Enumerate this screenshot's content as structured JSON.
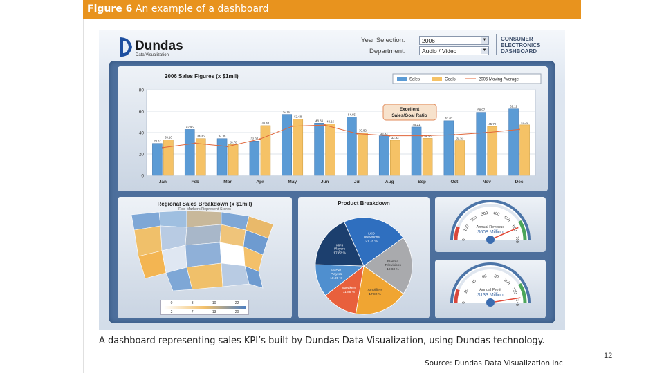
{
  "figure": {
    "label": "Figure 6",
    "title": "An example of a dashboard"
  },
  "dashboard": {
    "brand": {
      "name": "Dundas",
      "sub": "Data Visualization"
    },
    "year_selection": {
      "label": "Year Selection:",
      "value": "2006"
    },
    "department": {
      "label": "Department:",
      "value": "Audio / Video"
    },
    "dash_title": [
      "CONSUMER",
      "ELECTRONICS",
      "DASHBOARD"
    ],
    "sales": {
      "title": "2006 Sales Figures (x $1mil)"
    },
    "region": {
      "title": "Regional Sales Breakdown (x $1mil)",
      "subtitle": "Red Markers Represent Stores",
      "legend_top": [
        "0",
        "3",
        "10",
        "22"
      ],
      "legend_bottom": [
        "2",
        "7",
        "13",
        "20"
      ]
    },
    "product": {
      "title": "Product Breakdown"
    },
    "gauges": [
      {
        "label": "Annual Revenue",
        "value_text": "$608 Million",
        "ticks": [
          "0",
          "100",
          "200",
          "300",
          "400",
          "500",
          "600",
          "700"
        ],
        "value": 608,
        "max": 700
      },
      {
        "label": "Annual Profit",
        "value_text": "$133 Million",
        "ticks": [
          "0",
          "20",
          "40",
          "60",
          "80",
          "100",
          "120",
          "140"
        ],
        "value": 133,
        "max": 140
      }
    ]
  },
  "chart_data": [
    {
      "type": "bar",
      "title": "2006 Sales Figures (x $1mil)",
      "categories": [
        "Jan",
        "Feb",
        "Mar",
        "Apr",
        "May",
        "Jun",
        "Jul",
        "Aug",
        "Sep",
        "Oct",
        "Nov",
        "Dec"
      ],
      "series": [
        {
          "name": "Sales",
          "values": [
            29.87,
            42.95,
            34.35,
            32.07,
            57.02,
            48.83,
            54.65,
            36.92,
            45.21,
            51.07,
            58.97,
            62.12
          ],
          "color": "#5b9bd5"
        },
        {
          "name": "Goals",
          "values": [
            33.1,
            34.36,
            28.78,
            46.52,
            52.68,
            48.16,
            39.82,
            32.92,
            34.58,
            32.53,
            45.79,
            47.2
          ],
          "color": "#f5c266"
        },
        {
          "name": "2005 Moving Average",
          "type": "line",
          "values": [
            26,
            30,
            27,
            34,
            46,
            47,
            39,
            37,
            37,
            38,
            40,
            43
          ],
          "color": "#e0663a"
        }
      ],
      "ylim": [
        0,
        80
      ],
      "yticks": [
        "0",
        "20",
        "40",
        "60",
        "80"
      ],
      "annotation": [
        "Excellent",
        "Sales/Goal Ratio"
      ],
      "legend": "top-right",
      "grid": true
    },
    {
      "type": "pie",
      "title": "Product Breakdown",
      "slices": [
        {
          "name": "LCD Televisions",
          "value": 21.78,
          "label": "21.78 %",
          "color": "#2f6fbf"
        },
        {
          "name": "Plasma Televisions",
          "value": 19.6,
          "label": "19.60 %",
          "color": "#a9aaad"
        },
        {
          "name": "Amplifiers",
          "value": 17.82,
          "label": "17.82 %",
          "color": "#f0a532"
        },
        {
          "name": "Speakers",
          "value": 11.88,
          "label": "11.88 %",
          "color": "#e8603c"
        },
        {
          "name": "Hi-Def Players",
          "value": 10.89,
          "label": "10.89 %",
          "color": "#4f8fcf"
        },
        {
          "name": "MP3 Players",
          "value": 17.82,
          "label": "17.82 %",
          "color": "#1c3f6e"
        }
      ]
    }
  ],
  "caption": "A dashboard representing sales KPI’s built by Dundas Data Visualization, using Dundas technology.",
  "source": "Source: Dundas Data Visualization Inc",
  "page_number": "12"
}
